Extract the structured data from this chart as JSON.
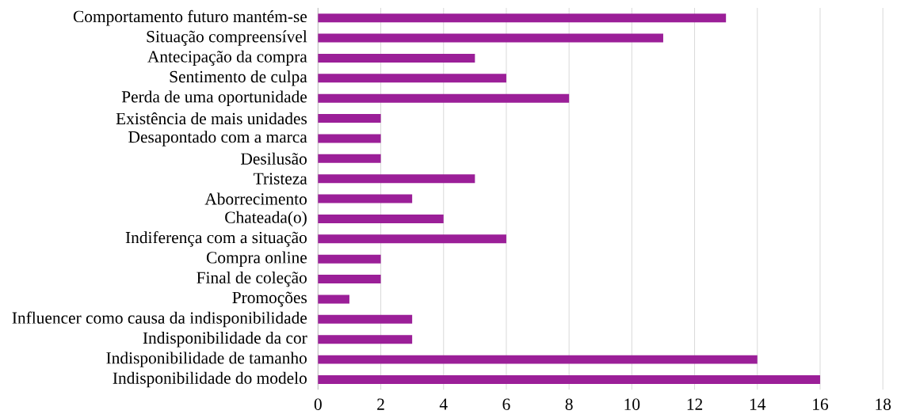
{
  "chart_data": {
    "type": "bar",
    "orientation": "horizontal",
    "categories": [
      "Comportamento futuro mantém-se",
      "Situação compreensível",
      "Antecipação da compra",
      "Sentimento de culpa",
      "Perda de uma oportunidade",
      "Existência de mais unidades",
      "Desapontado com a marca",
      "Desilusão",
      "Tristeza",
      "Aborrecimento",
      "Chateada(o)",
      "Indiferença com a situação",
      "Compra online",
      "Final de coleção",
      "Promoções",
      "Influencer como causa da indisponibilidade",
      "Indisponibilidade da cor",
      "Indisponibilidade de tamanho",
      "Indisponibilidade do modelo"
    ],
    "values": [
      13,
      11,
      5,
      6,
      8,
      2,
      2,
      2,
      5,
      3,
      4,
      6,
      2,
      2,
      1,
      3,
      3,
      14,
      16
    ],
    "color": "#9b1f98",
    "xlim": [
      0,
      18
    ],
    "xticks": [
      0,
      2,
      4,
      6,
      8,
      10,
      12,
      14,
      16,
      18
    ],
    "grid": "x"
  }
}
